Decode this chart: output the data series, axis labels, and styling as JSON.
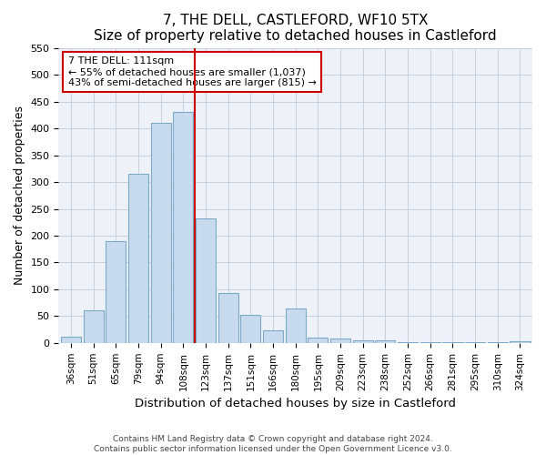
{
  "title": "7, THE DELL, CASTLEFORD, WF10 5TX",
  "subtitle": "Size of property relative to detached houses in Castleford",
  "xlabel": "Distribution of detached houses by size in Castleford",
  "ylabel": "Number of detached properties",
  "categories": [
    "36sqm",
    "51sqm",
    "65sqm",
    "79sqm",
    "94sqm",
    "108sqm",
    "123sqm",
    "137sqm",
    "151sqm",
    "166sqm",
    "180sqm",
    "195sqm",
    "209sqm",
    "223sqm",
    "238sqm",
    "252sqm",
    "266sqm",
    "281sqm",
    "295sqm",
    "310sqm",
    "324sqm"
  ],
  "values": [
    12,
    60,
    190,
    315,
    410,
    430,
    233,
    93,
    52,
    24,
    65,
    10,
    8,
    5,
    5,
    1,
    1,
    1,
    1,
    1,
    3
  ],
  "bar_color": "#c8daee",
  "bar_edge_color": "#7aaac8",
  "vline_color": "#cc0000",
  "annotation_title": "7 THE DELL: 111sqm",
  "annotation_line1": "← 55% of detached houses are smaller (1,037)",
  "annotation_line2": "43% of semi-detached houses are larger (815) →",
  "annotation_box_color": "#ffffff",
  "annotation_box_edge_color": "#cc0000",
  "ylim": [
    0,
    550
  ],
  "yticks": [
    0,
    50,
    100,
    150,
    200,
    250,
    300,
    350,
    400,
    450,
    500,
    550
  ],
  "footer1": "Contains HM Land Registry data © Crown copyright and database right 2024.",
  "footer2": "Contains public sector information licensed under the Open Government Licence v3.0.",
  "bg_color": "#eef2f8",
  "grid_color": "#c8d0e0",
  "fig_bg_color": "#ffffff"
}
